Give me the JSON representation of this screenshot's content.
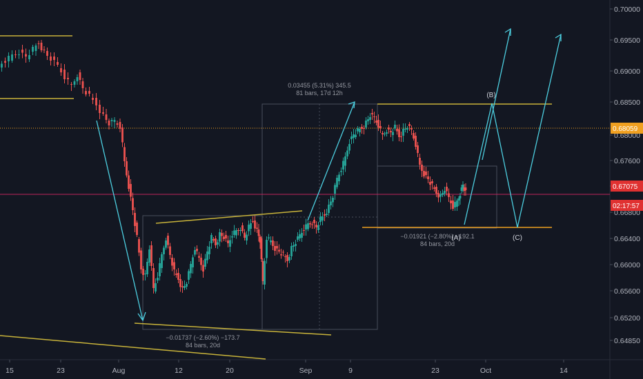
{
  "chart_data": {
    "type": "candlestick",
    "y_ticks": [
      "0.70000",
      "0.69500",
      "0.69000",
      "0.68500",
      "0.68000",
      "0.67600",
      "0.67200",
      "0.66800",
      "0.66400",
      "0.66000",
      "0.65600",
      "0.65200",
      "0.64850"
    ],
    "ylim": [
      0.6472,
      0.702
    ],
    "x_ticks": [
      "15",
      "23",
      "Aug",
      "12",
      "20",
      "Sep",
      "9",
      "23",
      "Oct",
      "14"
    ],
    "grid": false,
    "price_labels": [
      {
        "value": 0.68059,
        "text": "0.68059",
        "color": "#f0a020"
      },
      {
        "value": 0.67075,
        "text": "0.67075",
        "color": "#e03131"
      },
      {
        "value": 0.6696,
        "text": "02:17:57",
        "color": "#e03131"
      }
    ],
    "horizontal_lines": [
      {
        "name": "current-price-line",
        "value": 0.67075,
        "color": "#c2255c",
        "style": "solid"
      },
      {
        "name": "dotted-level-line",
        "value": 0.68059,
        "color": "#f0a020",
        "style": "dotted"
      }
    ],
    "annotations": [
      {
        "name": "measure-rally",
        "line1": "0.03455 (5.31%) 345.5",
        "line2": "81 bars, 17d 12h"
      },
      {
        "name": "measure-drop-a",
        "line1": "−0.01921 (−2.80%) −192.1",
        "line2": "84 bars, 20d"
      },
      {
        "name": "measure-drop-aug",
        "line1": "−0.01737 (−2.60%) −173.7",
        "line2": "84 bars, 20d"
      }
    ],
    "wave_labels": [
      "(B)",
      "(A)",
      "(C)"
    ],
    "colors": {
      "up": "#26a69a",
      "down": "#ef5350",
      "trendline": "#c9b43a",
      "arrow": "#4dd0e1",
      "background": "#131722"
    },
    "candles_hint": "Downtrend from ~0.6950 (mid-July) to ~0.6540 (early Aug), range 0.6540–0.6690 through late Aug, rally to ~0.6845 (mid-Sep), pullback to ~0.6680 (late Sep), last close 0.67075"
  }
}
